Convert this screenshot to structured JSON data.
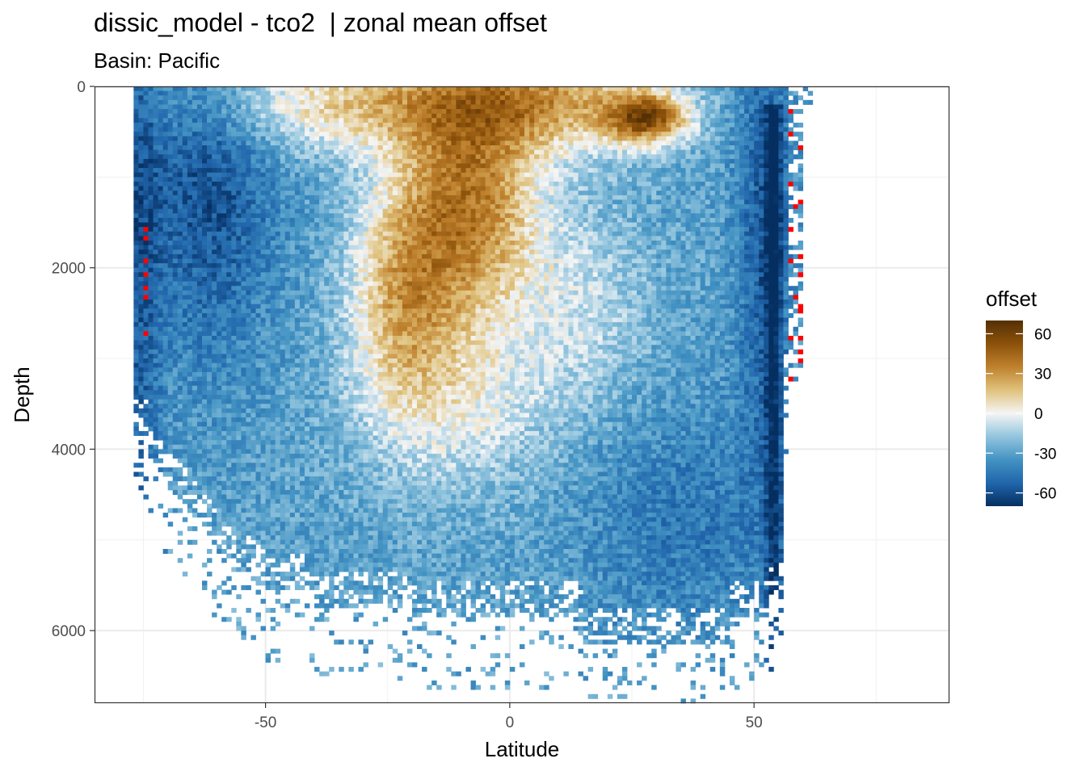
{
  "title": "dissic_model - tco2  | zonal mean offset",
  "subtitle": "Basin: Pacific",
  "chart_data": {
    "type": "heatmap",
    "xlabel": "Latitude",
    "ylabel": "Depth",
    "xlim": [
      -85,
      90
    ],
    "ylim": [
      6800,
      0
    ],
    "y_reversed": true,
    "x_ticks": [
      -50,
      0,
      50
    ],
    "x_tick_labels": [
      "-50",
      "0",
      "50"
    ],
    "y_ticks": [
      0,
      2000,
      4000,
      6000
    ],
    "y_tick_labels": [
      "0",
      "2000",
      "4000",
      "6000"
    ],
    "grid": true,
    "legend": {
      "title": "offset",
      "position": "right",
      "limits": [
        -70,
        70
      ],
      "ticks": [
        60,
        30,
        0,
        -30,
        -60
      ],
      "tick_labels": [
        "60",
        "30",
        "0",
        "-30",
        "-60"
      ]
    },
    "color_scale": {
      "type": "diverging",
      "low": "#052f61",
      "mid": "#f5f5f5",
      "high": "#543005",
      "stops": [
        "#052f61",
        "#2166ac",
        "#4393c3",
        "#92c5de",
        "#f5f5f5",
        "#dfc27d",
        "#bf812d",
        "#8c510a",
        "#543005"
      ]
    },
    "out_of_range_color": "#ff0000",
    "cell_size": {
      "lat": 1.0,
      "depth": 50
    },
    "description_of_field": "Zonal mean offset of dissolved inorganic carbon vs. depth and latitude; strongly negative (blue) in the southern basin below ~500 m, positive (brown) in subsurface tropical/subtropical waters centered near 0 to -20 latitude at 1000-3000 m, and a strong positive core near 28N at 300-500 m."
  }
}
